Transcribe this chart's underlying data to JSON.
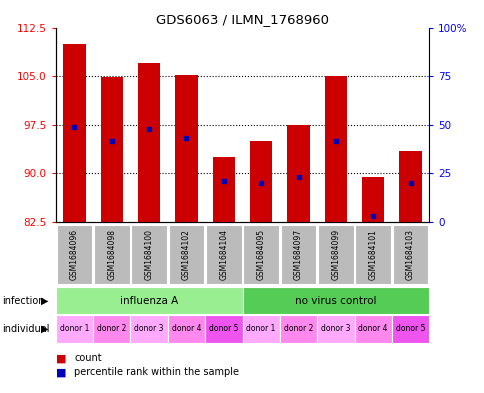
{
  "title": "GDS6063 / ILMN_1768960",
  "samples": [
    "GSM1684096",
    "GSM1684098",
    "GSM1684100",
    "GSM1684102",
    "GSM1684104",
    "GSM1684095",
    "GSM1684097",
    "GSM1684099",
    "GSM1684101",
    "GSM1684103"
  ],
  "bar_tops": [
    110.0,
    104.8,
    107.0,
    105.1,
    92.5,
    95.0,
    97.5,
    105.0,
    89.5,
    93.5
  ],
  "bar_base": 82.5,
  "blue_dot_values": [
    97.2,
    95.0,
    96.8,
    95.5,
    88.8,
    88.5,
    89.5,
    95.0,
    83.5,
    88.5
  ],
  "ylim_left": [
    82.5,
    112.5
  ],
  "ylim_right": [
    0,
    100
  ],
  "yticks_left": [
    82.5,
    90.0,
    97.5,
    105.0,
    112.5
  ],
  "yticks_right": [
    0,
    25,
    50,
    75,
    100
  ],
  "infection_groups": [
    {
      "label": "influenza A",
      "start": 0,
      "end": 5,
      "color": "#98EE90"
    },
    {
      "label": "no virus control",
      "start": 5,
      "end": 10,
      "color": "#55CC55"
    }
  ],
  "individual_labels": [
    "donor 1",
    "donor 2",
    "donor 3",
    "donor 4",
    "donor 5",
    "donor 1",
    "donor 2",
    "donor 3",
    "donor 4",
    "donor 5"
  ],
  "individual_colors": [
    "#FFAAFF",
    "#FF88EE",
    "#FFAAFF",
    "#FF88EE",
    "#EE55EE",
    "#FFAAFF",
    "#FF88EE",
    "#FFAAFF",
    "#FF88EE",
    "#EE55EE"
  ],
  "bar_color": "#CC0000",
  "dot_color": "#0000BB",
  "background_color": "#ffffff",
  "label_bg_color": "#BBBBBB",
  "infection_label_color": "#000000",
  "left_labels": [
    "infection",
    "individual"
  ],
  "legend_items": [
    {
      "color": "#CC0000",
      "label": "count"
    },
    {
      "color": "#0000BB",
      "label": "percentile rank within the sample"
    }
  ]
}
